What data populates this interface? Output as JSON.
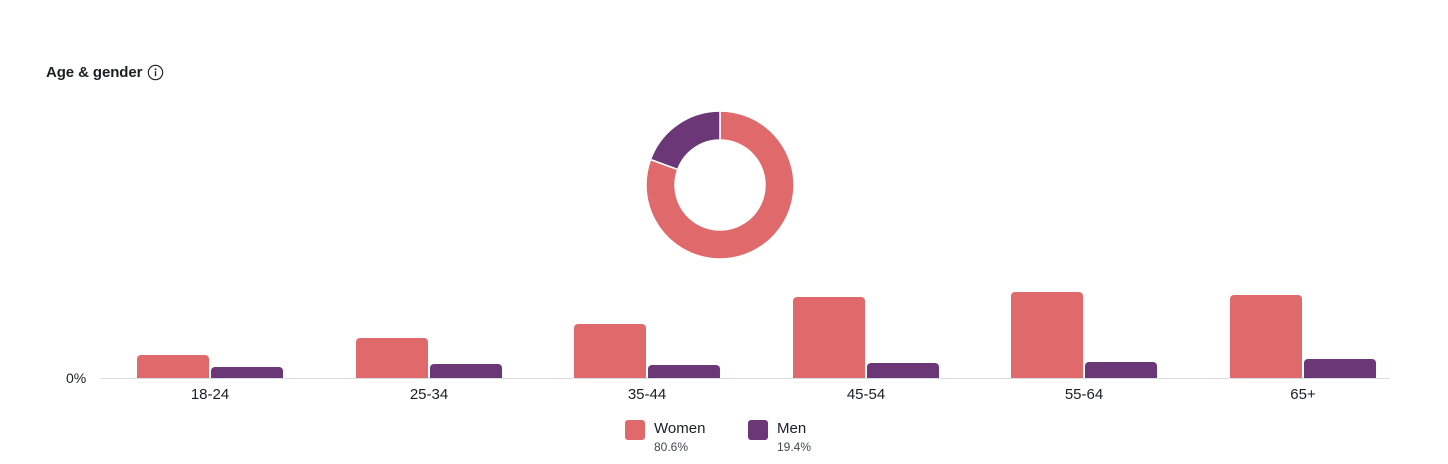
{
  "header": {
    "title": "Age & gender",
    "info_icon": "info-circle-icon"
  },
  "colors": {
    "women": "#e0696b",
    "men": "#6b3777",
    "baseline": "#dadde1",
    "text": "#1c1e21"
  },
  "legend": [
    {
      "label": "Women",
      "value": "80.6%"
    },
    {
      "label": "Men",
      "value": "19.4%"
    }
  ],
  "axis": {
    "zero_label": "0%"
  },
  "chart_data": [
    {
      "type": "pie",
      "subtype": "donut",
      "title": "Gender split",
      "labels": [
        "Women",
        "Men"
      ],
      "values": [
        80.6,
        19.4
      ],
      "colors": [
        "#e0696b",
        "#6b3777"
      ]
    },
    {
      "type": "bar",
      "title": "Age & gender",
      "categories": [
        "18-24",
        "25-34",
        "35-44",
        "45-54",
        "55-64",
        "65+"
      ],
      "series": [
        {
          "name": "Women",
          "values": [
            5.1,
            8.8,
            11.9,
            17.8,
            18.9,
            18.2
          ],
          "color": "#e0696b"
        },
        {
          "name": "Men",
          "values": [
            2.4,
            3.1,
            2.9,
            3.3,
            3.5,
            4.2
          ],
          "color": "#6b3777"
        }
      ],
      "xlabel": "",
      "ylabel": "",
      "y_tick_labels": [
        "0%"
      ],
      "ylim": [
        0,
        20
      ],
      "grid": false,
      "legend_position": "bottom"
    }
  ]
}
